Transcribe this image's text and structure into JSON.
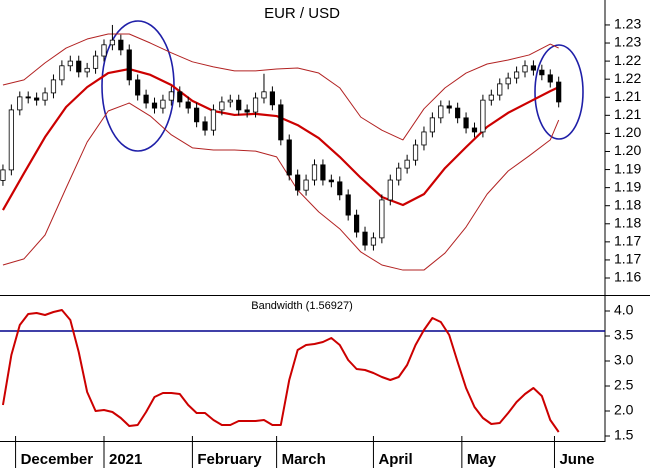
{
  "chart_data": [
    {
      "type": "candlestick",
      "title": "EUR / USD",
      "x": [
        0,
        2,
        4,
        6,
        8,
        10,
        12,
        14,
        16,
        18,
        20,
        22,
        24,
        26,
        28,
        30,
        32,
        34,
        36,
        38,
        40,
        42,
        44,
        46,
        48,
        50,
        52,
        54,
        56,
        58,
        60,
        62,
        64,
        66,
        68,
        70,
        72,
        74,
        76,
        78,
        80,
        82,
        84,
        86,
        88,
        90,
        92,
        94,
        96,
        98,
        100,
        102,
        104,
        106,
        108,
        110,
        112,
        114,
        116,
        118,
        120,
        122,
        124,
        126,
        128,
        130,
        132
      ],
      "open": [
        1.187,
        1.1899,
        1.2065,
        1.2101,
        1.2098,
        1.2092,
        1.2112,
        1.2148,
        1.2187,
        1.22,
        1.217,
        1.218,
        1.2214,
        1.2245,
        1.2258,
        1.2231,
        1.2148,
        1.2106,
        1.2084,
        1.207,
        1.2092,
        1.2115,
        1.2087,
        1.207,
        1.2032,
        1.2009,
        1.2065,
        1.2087,
        1.2092,
        1.2065,
        1.2059,
        1.2098,
        1.2115,
        1.2079,
        1.1982,
        1.1885,
        1.1843,
        1.1871,
        1.1913,
        1.1871,
        1.1866,
        1.183,
        1.1774,
        1.1727,
        1.1691,
        1.1711,
        1.1816,
        1.1871,
        1.1904,
        1.1926,
        1.1968,
        1.2004,
        1.2043,
        1.2076,
        1.207,
        1.2043,
        1.2015,
        1.2004,
        1.2092,
        1.2106,
        1.2137,
        1.2153,
        1.217,
        1.2187,
        1.2175,
        1.2162,
        1.2142
      ],
      "high": [
        1.1914,
        1.208,
        1.2116,
        1.2116,
        1.2113,
        1.2127,
        1.2163,
        1.2202,
        1.2215,
        1.2215,
        1.2195,
        1.2229,
        1.226,
        1.23,
        1.2273,
        1.2246,
        1.2163,
        1.2121,
        1.2099,
        1.2107,
        1.213,
        1.213,
        1.2102,
        1.2085,
        1.2047,
        1.208,
        1.2102,
        1.2107,
        1.2107,
        1.208,
        1.2113,
        1.2165,
        1.213,
        1.2094,
        1.1997,
        1.19,
        1.1886,
        1.1928,
        1.1928,
        1.1886,
        1.1881,
        1.1845,
        1.1789,
        1.1742,
        1.1726,
        1.1831,
        1.1886,
        1.1919,
        1.1941,
        1.1983,
        1.2019,
        1.2058,
        1.2091,
        1.2091,
        1.2085,
        1.2058,
        1.203,
        1.2107,
        1.2121,
        1.2152,
        1.2168,
        1.2185,
        1.2202,
        1.2202,
        1.219,
        1.2177,
        1.2157
      ],
      "low": [
        1.1855,
        1.1884,
        1.205,
        1.2083,
        1.2077,
        1.2077,
        1.2097,
        1.2133,
        1.2172,
        1.2155,
        1.2155,
        1.2165,
        1.2199,
        1.223,
        1.2216,
        1.2133,
        1.2091,
        1.2069,
        1.2055,
        1.2055,
        1.2077,
        1.2072,
        1.2055,
        1.2017,
        1.1994,
        1.1994,
        1.205,
        1.2072,
        1.205,
        1.2044,
        1.2044,
        1.2083,
        1.2064,
        1.1967,
        1.187,
        1.1828,
        1.1828,
        1.1856,
        1.1856,
        1.1851,
        1.1815,
        1.1759,
        1.1712,
        1.1676,
        1.1676,
        1.1696,
        1.1801,
        1.1856,
        1.1889,
        1.1911,
        1.1953,
        1.1989,
        1.2028,
        1.2055,
        1.2028,
        1.2,
        1.1989,
        1.1989,
        1.2077,
        1.2091,
        1.2122,
        1.2138,
        1.2155,
        1.216,
        1.2147,
        1.2127,
        1.2072
      ],
      "close": [
        1.1899,
        1.2065,
        1.2101,
        1.2098,
        1.2092,
        1.2112,
        1.2148,
        1.2187,
        1.22,
        1.217,
        1.218,
        1.2214,
        1.2245,
        1.2258,
        1.2231,
        1.2148,
        1.2106,
        1.2084,
        1.207,
        1.2092,
        1.2115,
        1.2087,
        1.207,
        1.2032,
        1.2009,
        1.2065,
        1.2087,
        1.2092,
        1.2065,
        1.2059,
        1.2098,
        1.2115,
        1.2079,
        1.1982,
        1.1885,
        1.1843,
        1.1871,
        1.1913,
        1.1871,
        1.1866,
        1.183,
        1.1774,
        1.1727,
        1.1691,
        1.1711,
        1.1816,
        1.1871,
        1.1904,
        1.1926,
        1.1968,
        1.2004,
        1.2043,
        1.2076,
        1.207,
        1.2043,
        1.2015,
        1.2004,
        1.2092,
        1.2106,
        1.2137,
        1.2153,
        1.217,
        1.2187,
        1.2175,
        1.2162,
        1.2142,
        1.2087
      ],
      "up_color": "#ffffff",
      "down_color": "#000000",
      "bands": {
        "x": [
          0,
          5,
          10,
          15,
          20,
          25,
          30,
          35,
          40,
          45,
          50,
          55,
          60,
          65,
          70,
          75,
          80,
          85,
          90,
          95,
          100,
          105,
          110,
          115,
          120,
          125,
          130,
          132
        ],
        "lines": [
          {
            "color": "#b22222",
            "width": 1,
            "values": [
              1.2134,
              1.2148,
              1.2195,
              1.2236,
              1.2261,
              1.2275,
              1.2275,
              1.225,
              1.2223,
              1.2198,
              1.2184,
              1.2173,
              1.2173,
              1.2178,
              1.2181,
              1.2167,
              1.2126,
              1.2045,
              1.2009,
              1.1982,
              1.2068,
              1.2126,
              1.2167,
              1.2192,
              1.2203,
              1.2217,
              1.2247,
              1.2236
            ]
          },
          {
            "color": "#cc0000",
            "width": 2.2,
            "values": [
              1.1788,
              1.189,
              1.199,
              1.2073,
              1.2128,
              1.2167,
              1.2178,
              1.2162,
              1.2134,
              1.209,
              1.2062,
              1.2051,
              1.2054,
              1.2048,
              1.2023,
              1.1987,
              1.1935,
              1.1877,
              1.1824,
              1.1802,
              1.1832,
              1.1904,
              1.1962,
              1.2018,
              1.2057,
              1.2087,
              1.2117,
              1.2128
            ]
          },
          {
            "color": "#b22222",
            "width": 1,
            "values": [
              1.1636,
              1.1653,
              1.1719,
              1.1849,
              1.1976,
              1.2062,
              1.2084,
              1.2048,
              1.1996,
              1.196,
              1.1954,
              1.1954,
              1.1951,
              1.1935,
              1.1843,
              1.1783,
              1.1736,
              1.1672,
              1.1636,
              1.1622,
              1.1622,
              1.1669,
              1.1741,
              1.1832,
              1.1896,
              1.1938,
              1.1982,
              1.2037
            ]
          }
        ]
      },
      "xlim": [
        -0.7,
        143
      ],
      "ylim": [
        1.1553,
        1.2369
      ],
      "yticks": [
        1.23,
        {
          "value": 1.225,
          "label": "1.23"
        },
        1.22,
        {
          "value": 1.215,
          "label": "1.22"
        },
        1.21,
        {
          "value": 1.205,
          "label": "1.21"
        },
        {
          "value": 1.2,
          "label": "1.20"
        },
        {
          "value": 1.195,
          "label": "1.20"
        },
        1.19,
        {
          "value": 1.185,
          "label": "1.19"
        },
        1.18,
        {
          "value": 1.175,
          "label": "1.18"
        },
        1.17,
        {
          "value": 1.165,
          "label": "1.17"
        },
        1.16
      ]
    },
    {
      "type": "line",
      "title": "Bandwidth (1.56927)",
      "color": "#cc0000",
      "x": [
        0,
        2,
        4,
        6,
        8,
        10,
        12,
        14,
        16,
        18,
        20,
        22,
        24,
        26,
        28,
        30,
        32,
        34,
        36,
        38,
        40,
        42,
        44,
        46,
        48,
        50,
        52,
        54,
        56,
        58,
        60,
        62,
        64,
        66,
        68,
        70,
        72,
        74,
        76,
        78,
        80,
        82,
        84,
        86,
        88,
        90,
        92,
        94,
        96,
        98,
        100,
        102,
        104,
        106,
        108,
        110,
        112,
        114,
        116,
        118,
        120,
        122,
        124,
        126,
        128,
        130,
        132
      ],
      "values": [
        2.12,
        3.12,
        3.72,
        3.94,
        3.96,
        3.92,
        3.98,
        4.02,
        3.82,
        3.18,
        2.38,
        2,
        2.02,
        1.98,
        1.86,
        1.7,
        1.72,
        1.98,
        2.28,
        2.36,
        2.36,
        2.34,
        2.12,
        1.96,
        1.96,
        1.82,
        1.72,
        1.72,
        1.8,
        1.8,
        1.8,
        1.82,
        1.72,
        1.72,
        2.62,
        3.22,
        3.32,
        3.34,
        3.38,
        3.46,
        3.32,
        3.02,
        2.84,
        2.82,
        2.76,
        2.68,
        2.62,
        2.68,
        2.92,
        3.32,
        3.62,
        3.86,
        3.78,
        3.52,
        2.98,
        2.46,
        2.08,
        1.86,
        1.74,
        1.76,
        1.96,
        2.18,
        2.34,
        2.46,
        2.3,
        1.82,
        1.58
      ],
      "ref_line": {
        "value": 3.6,
        "color": "#00008b"
      },
      "xlim": [
        -0.7,
        143
      ],
      "ylim": [
        1.38,
        4.3
      ],
      "yticks": [
        {
          "value": 4,
          "label": "4.0"
        },
        3.5,
        {
          "value": 3,
          "label": "3.0"
        },
        2.5,
        {
          "value": 2,
          "label": "2.0"
        },
        1.5
      ],
      "xticks": [
        {
          "value": 3,
          "label": "December"
        },
        {
          "value": 24,
          "label": "2021"
        },
        {
          "value": 45,
          "label": "February"
        },
        {
          "value": 65,
          "label": "March"
        },
        {
          "value": 88,
          "label": "April"
        },
        {
          "value": 109,
          "label": "May"
        },
        {
          "value": 131,
          "label": "June"
        }
      ]
    }
  ]
}
